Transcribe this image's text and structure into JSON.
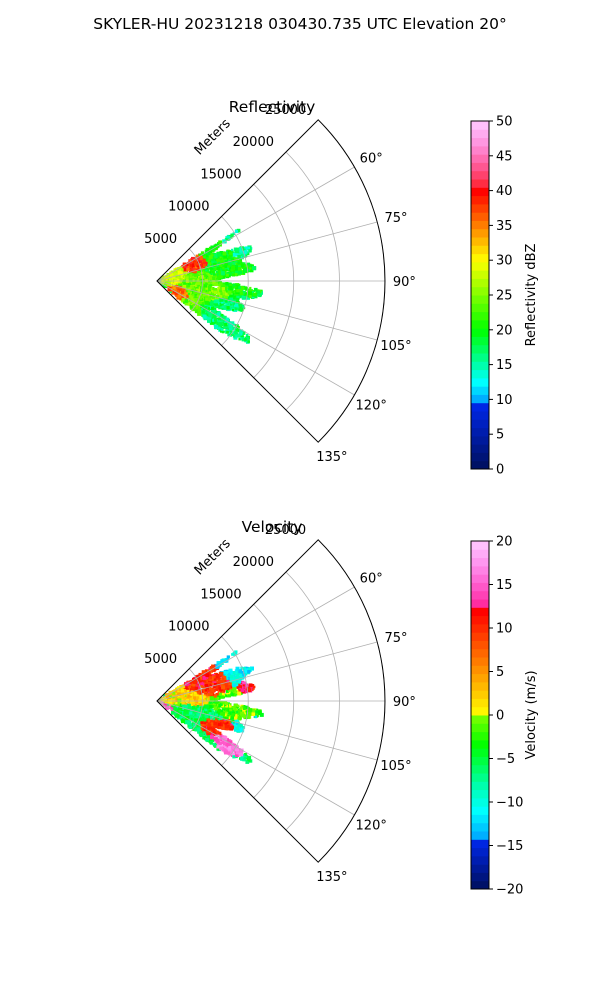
{
  "figure": {
    "title": "SKYLER-HU  20231218  030430.735 UTC Elevation 20°"
  },
  "chart_data": [
    {
      "type": "heatmap",
      "projection": "polar-sector",
      "title": "Reflectivity",
      "range_label": "Meters",
      "radial_ticks": [
        5000,
        10000,
        15000,
        20000,
        25000
      ],
      "r_max": 25000,
      "theta_range_deg": [
        45,
        135
      ],
      "angle_ticks": [
        "60°",
        "75°",
        "90°",
        "105°",
        "120°",
        "135°"
      ],
      "grid": true,
      "colorbar": {
        "label": "Reflectivity dBZ",
        "min": 0,
        "max": 50,
        "ticks": [
          0,
          5,
          10,
          15,
          20,
          25,
          30,
          35,
          40,
          45,
          50
        ]
      },
      "echo_coverage": {
        "azimuth_range_deg": [
          58,
          128
        ],
        "max_range_m": 12500
      },
      "features": [
        {
          "azimuth_deg": 70,
          "range_m": 4500,
          "value": 38,
          "width_deg": 12,
          "width_m": 1800
        },
        {
          "azimuth_deg": 112,
          "range_m": 2800,
          "value": 36,
          "width_deg": 14,
          "width_m": 1500
        },
        {
          "azimuth_deg": 85,
          "range_m": 2000,
          "value": 28,
          "width_deg": 26,
          "width_m": 2500
        },
        {
          "azimuth_deg": 95,
          "range_m": 4500,
          "value": 24,
          "width_deg": 30,
          "width_m": 4000
        },
        {
          "azimuth_deg": 78,
          "range_m": 8000,
          "value": 20,
          "width_deg": 22,
          "width_m": 4000
        },
        {
          "azimuth_deg": 115,
          "range_m": 8500,
          "value": 17,
          "width_deg": 14,
          "width_m": 3500
        },
        {
          "azimuth_deg": 70,
          "range_m": 10000,
          "value": 16,
          "width_deg": 15,
          "width_m": 3000
        }
      ]
    },
    {
      "type": "heatmap",
      "projection": "polar-sector",
      "title": "Velocity",
      "range_label": "Meters",
      "radial_ticks": [
        5000,
        10000,
        15000,
        20000,
        25000
      ],
      "r_max": 25000,
      "theta_range_deg": [
        45,
        135
      ],
      "angle_ticks": [
        "60°",
        "75°",
        "90°",
        "105°",
        "120°",
        "135°"
      ],
      "grid": true,
      "colorbar": {
        "label": "Velocity (m/s)",
        "min": -20,
        "max": 20,
        "ticks": [
          -20,
          -15,
          -10,
          -5,
          0,
          5,
          10,
          15,
          20
        ]
      },
      "echo_coverage": {
        "azimuth_range_deg": [
          58,
          128
        ],
        "max_range_m": 12500
      },
      "features": [
        {
          "azimuth_deg": 75,
          "range_m": 5500,
          "value": 10,
          "width_deg": 18,
          "width_m": 3500
        },
        {
          "azimuth_deg": 113,
          "range_m": 7000,
          "value": 10,
          "width_deg": 9,
          "width_m": 2500
        },
        {
          "azimuth_deg": 85,
          "range_m": 3500,
          "value": 2,
          "width_deg": 25,
          "width_m": 4000
        },
        {
          "azimuth_deg": 92,
          "range_m": 8000,
          "value": -2,
          "width_deg": 14,
          "width_m": 4000
        },
        {
          "azimuth_deg": 105,
          "range_m": 4500,
          "value": -6,
          "width_deg": 16,
          "width_m": 3500
        },
        {
          "azimuth_deg": 68,
          "range_m": 10000,
          "value": -11,
          "width_deg": 14,
          "width_m": 3000
        },
        {
          "azimuth_deg": 82,
          "range_m": 10500,
          "value": 12,
          "width_deg": 8,
          "width_m": 2000
        },
        {
          "azimuth_deg": 118,
          "range_m": 9000,
          "value": 16,
          "width_deg": 8,
          "width_m": 2000
        },
        {
          "azimuth_deg": 108,
          "range_m": 11000,
          "value": -10,
          "width_deg": 10,
          "width_m": 2500
        },
        {
          "azimuth_deg": 120,
          "range_m": 1200,
          "value": 15,
          "width_deg": 12,
          "width_m": 800
        }
      ]
    }
  ]
}
